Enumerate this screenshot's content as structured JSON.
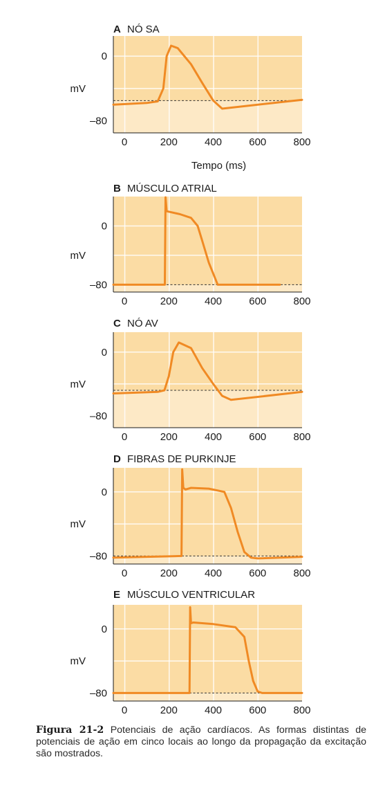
{
  "chart_data": [
    {
      "type": "line",
      "letter": "A",
      "title": "NÓ SA",
      "ylabel": "mV",
      "xlabel": "Tempo (ms)",
      "xlim": [
        -50,
        800
      ],
      "ylim": [
        -95,
        25
      ],
      "xticks": [
        "0",
        "200",
        "400",
        "600",
        "800"
      ],
      "yticks": [
        "0",
        "–80"
      ],
      "threshold": -55,
      "series": [
        {
          "x": [
            -50,
            100,
            150,
            175,
            190,
            210,
            240,
            300,
            350,
            400,
            440,
            800
          ],
          "y": [
            -60,
            -58,
            -56,
            -40,
            0,
            13,
            10,
            -10,
            -33,
            -55,
            -65,
            -54
          ]
        }
      ]
    },
    {
      "type": "line",
      "letter": "B",
      "title": "MÚSCULO ATRIAL",
      "ylabel": "mV",
      "xlabel": "",
      "xlim": [
        -50,
        800
      ],
      "ylim": [
        -90,
        40
      ],
      "xticks": [
        "0",
        "200",
        "400",
        "600",
        "800"
      ],
      "yticks": [
        "0",
        "–80"
      ],
      "threshold": -80,
      "series": [
        {
          "x": [
            -50,
            180,
            182,
            185,
            190,
            250,
            300,
            330,
            350,
            380,
            420,
            700
          ],
          "y": [
            -80,
            -80,
            -80,
            39,
            20,
            16,
            11,
            0,
            -20,
            -50,
            -80,
            -80
          ]
        }
      ]
    },
    {
      "type": "line",
      "letter": "C",
      "title": "NÓ AV",
      "ylabel": "mV",
      "xlabel": "",
      "xlim": [
        -50,
        800
      ],
      "ylim": [
        -95,
        25
      ],
      "xticks": [
        "0",
        "200",
        "400",
        "600",
        "800"
      ],
      "yticks": [
        "0",
        "–80"
      ],
      "threshold": -48,
      "series": [
        {
          "x": [
            -50,
            150,
            180,
            200,
            220,
            245,
            300,
            350,
            400,
            440,
            480,
            800
          ],
          "y": [
            -52,
            -50,
            -48,
            -30,
            0,
            12,
            5,
            -20,
            -40,
            -55,
            -60,
            -50
          ]
        }
      ]
    },
    {
      "type": "line",
      "letter": "D",
      "title": "FIBRAS DE PURKINJE",
      "ylabel": "mV",
      "xlabel": "",
      "xlim": [
        -50,
        800
      ],
      "ylim": [
        -90,
        30
      ],
      "xticks": [
        "0",
        "200",
        "400",
        "600",
        "800"
      ],
      "yticks": [
        "0",
        "–80"
      ],
      "threshold": -80,
      "series": [
        {
          "x": [
            -50,
            100,
            255,
            257,
            260,
            265,
            275,
            300,
            380,
            450,
            480,
            510,
            540,
            570,
            600,
            800
          ],
          "y": [
            -82,
            -81,
            -80,
            -80,
            28,
            5,
            3,
            5,
            4,
            0,
            -20,
            -50,
            -75,
            -82,
            -83,
            -81
          ]
        }
      ]
    },
    {
      "type": "line",
      "letter": "E",
      "title": "MÚSCULO VENTRICULAR",
      "ylabel": "mV",
      "xlabel": "",
      "xlim": [
        -50,
        800
      ],
      "ylim": [
        -90,
        30
      ],
      "xticks": [
        "0",
        "200",
        "400",
        "600",
        "800"
      ],
      "yticks": [
        "0",
        "–80"
      ],
      "threshold": -80,
      "series": [
        {
          "x": [
            -50,
            290,
            293,
            296,
            300,
            310,
            400,
            500,
            540,
            560,
            580,
            600,
            620,
            800
          ],
          "y": [
            -80,
            -80,
            -80,
            27,
            7,
            8,
            6,
            2,
            -10,
            -40,
            -65,
            -78,
            -80,
            -80
          ]
        }
      ]
    }
  ],
  "caption": {
    "label": "Figura 21-2",
    "text": "Potenciais de ação cardíacos. As formas distintas de potenciais de ação em cinco locais ao longo da propagação da excitação são mostrados."
  },
  "colors": {
    "panel": "#fbdca4",
    "panel_low": "#fde9c6",
    "grid": "#ffffff",
    "trace": "#f08a24",
    "dashed": "#333333"
  }
}
